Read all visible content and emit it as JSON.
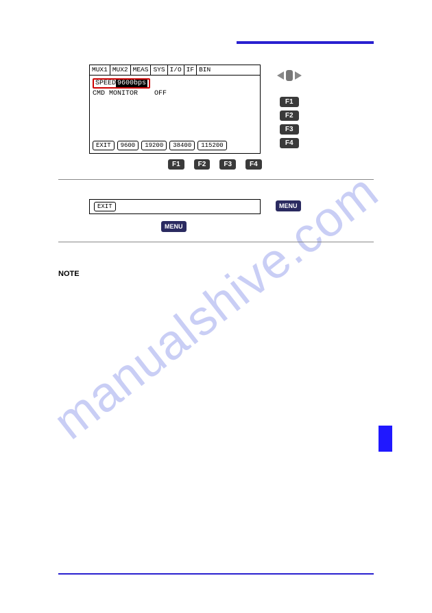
{
  "watermark": "manualshive.com",
  "panel": {
    "menubar": [
      "MUX1",
      "MUX2",
      "MEAS",
      "SYS",
      "I/O",
      "IF",
      "BIN"
    ],
    "speed": {
      "label": "SPEED",
      "value": "9600bps",
      "highlight_border": "#cc0000"
    },
    "cmd": {
      "label": "CMD MONITOR",
      "value": "OFF"
    },
    "softkeys": [
      "EXIT",
      "9600",
      "19200",
      "38400",
      "115200"
    ],
    "fkeys_bottom": [
      "F1",
      "F2",
      "F3",
      "F4"
    ],
    "side_fkeys": [
      "F1",
      "F2",
      "F3",
      "F4"
    ]
  },
  "step2": {
    "softkey": "EXIT",
    "menu_label": "MENU",
    "menu_below": "MENU"
  },
  "note_label": "NOTE",
  "colors": {
    "rule": "#2920d0",
    "fkey_bg": "#3a3a3a",
    "menu_bg": "#2a2a60",
    "side_tab": "#2018ff",
    "watermark": "rgba(60,80,220,0.28)"
  }
}
